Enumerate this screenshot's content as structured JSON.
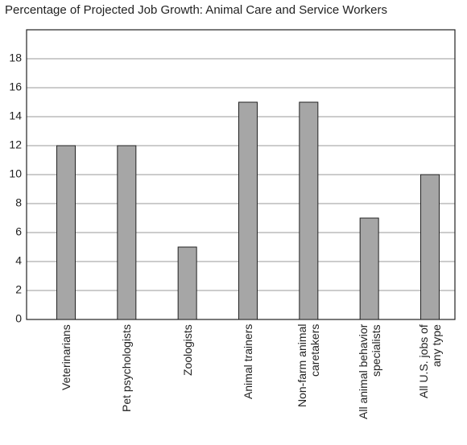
{
  "chart_data": {
    "type": "bar",
    "title": "Percentage of Projected Job Growth: Animal Care and Service Workers",
    "categories": [
      "Veterinarians",
      "Pet psychologists",
      "Zoologists",
      "Animal trainers",
      "Non-farm animal\ncaretakers",
      "All animal behavior\nspecialists",
      "All U.S. jobs of\nany type"
    ],
    "values": [
      12,
      12,
      5,
      15,
      15,
      7,
      10
    ],
    "color": "#a6a6a6",
    "ylim": [
      0,
      20
    ],
    "yticks": [
      0,
      2,
      4,
      6,
      8,
      10,
      12,
      14,
      16,
      18
    ],
    "grid": true
  }
}
